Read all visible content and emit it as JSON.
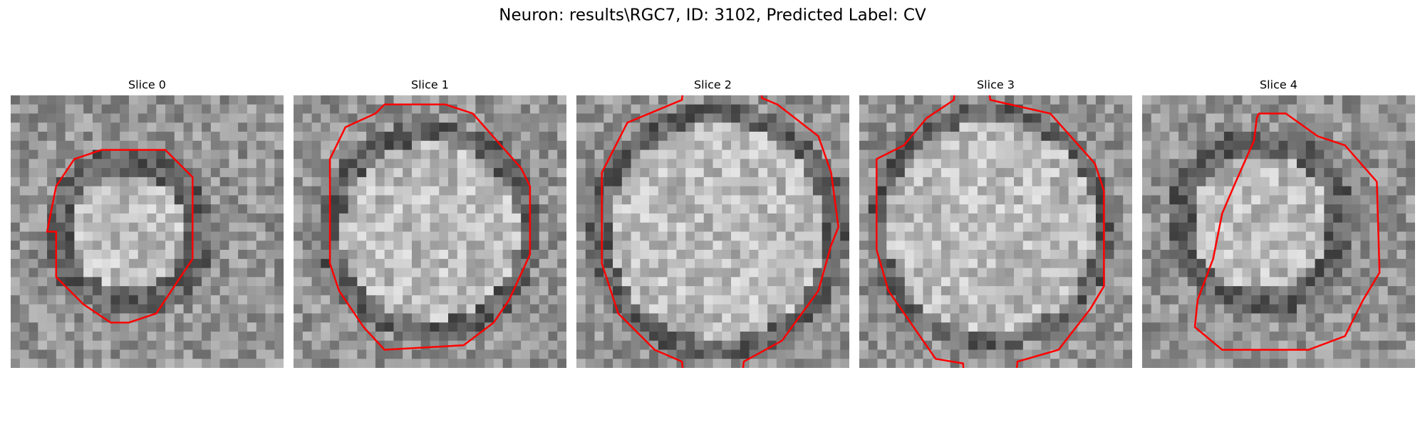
{
  "title": "Neuron: results\\RGC7, ID: 3102, Predicted Label: CV",
  "panels": [
    {
      "title": "Slice 0"
    },
    {
      "title": "Slice 1"
    },
    {
      "title": "Slice 2"
    },
    {
      "title": "Slice 3"
    },
    {
      "title": "Slice 4"
    }
  ]
}
